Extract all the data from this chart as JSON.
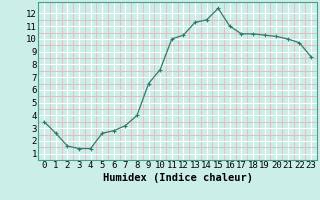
{
  "x": [
    0,
    1,
    2,
    3,
    4,
    5,
    6,
    7,
    8,
    9,
    10,
    11,
    12,
    13,
    14,
    15,
    16,
    17,
    18,
    19,
    20,
    21,
    22,
    23
  ],
  "y": [
    3.5,
    2.6,
    1.6,
    1.4,
    1.4,
    2.6,
    2.8,
    3.2,
    4.0,
    6.5,
    7.6,
    10.0,
    10.3,
    11.3,
    11.5,
    12.4,
    11.0,
    10.4,
    10.4,
    10.3,
    10.2,
    10.0,
    9.7,
    8.6
  ],
  "line_color": "#2d7d6e",
  "marker": "+",
  "marker_size": 3,
  "bg_color": "#cceee8",
  "grid_major_color": "#ffffff",
  "grid_minor_color": "#e8b8b8",
  "xlabel": "Humidex (Indice chaleur)",
  "xlim": [
    -0.5,
    23.5
  ],
  "ylim": [
    0.5,
    12.9
  ],
  "xticks": [
    0,
    1,
    2,
    3,
    4,
    5,
    6,
    7,
    8,
    9,
    10,
    11,
    12,
    13,
    14,
    15,
    16,
    17,
    18,
    19,
    20,
    21,
    22,
    23
  ],
  "yticks": [
    1,
    2,
    3,
    4,
    5,
    6,
    7,
    8,
    9,
    10,
    11,
    12
  ],
  "tick_fontsize": 6.5,
  "xlabel_fontsize": 7.5
}
